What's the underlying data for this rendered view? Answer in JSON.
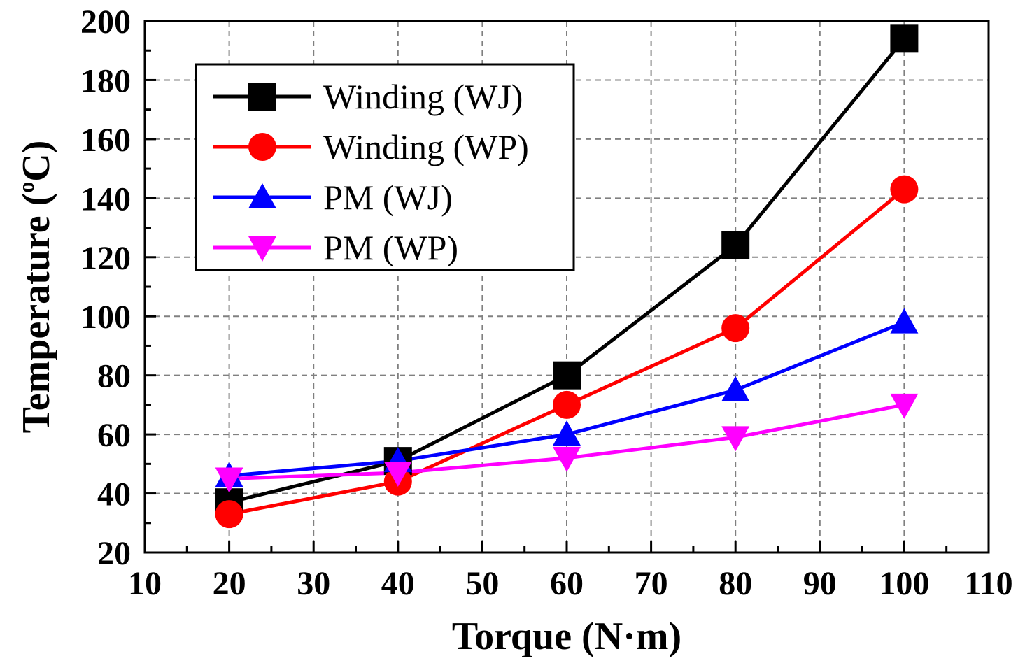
{
  "chart_data": {
    "type": "line",
    "title": "",
    "xlabel": "Torque (N·m)",
    "ylabel_prefix": "Temperature (",
    "ylabel_sup": "o",
    "ylabel_suffix": "C)",
    "xlim": [
      10,
      110
    ],
    "ylim": [
      20,
      200
    ],
    "x_ticks": [
      "10",
      "20",
      "30",
      "40",
      "50",
      "60",
      "70",
      "80",
      "90",
      "100",
      "110"
    ],
    "y_ticks": [
      "20",
      "40",
      "60",
      "80",
      "100",
      "120",
      "140",
      "160",
      "180",
      "200"
    ],
    "grid": true,
    "legend_position": "top-left",
    "x": [
      20,
      40,
      60,
      80,
      100
    ],
    "series": [
      {
        "name": "Winding (WJ)",
        "color": "#000000",
        "marker": "square",
        "values": [
          37,
          51,
          80,
          124,
          194
        ]
      },
      {
        "name": "Winding (WP)",
        "color": "#ff0000",
        "marker": "circle",
        "values": [
          33,
          44,
          70,
          96,
          143
        ]
      },
      {
        "name": "PM (WJ)",
        "color": "#0000ff",
        "marker": "triangle-up",
        "values": [
          46,
          51,
          60,
          75,
          98
        ]
      },
      {
        "name": "PM (WP)",
        "color": "#ff00ff",
        "marker": "triangle-down",
        "values": [
          45,
          47,
          52,
          59,
          70
        ]
      }
    ]
  }
}
